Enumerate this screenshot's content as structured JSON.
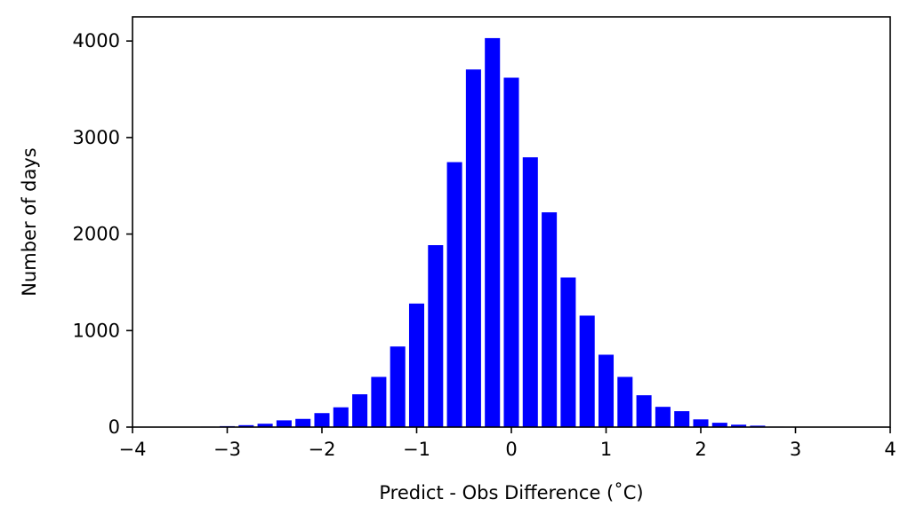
{
  "chart_data": {
    "type": "bar",
    "title": "",
    "xlabel": "Predict - Obs Difference (˚C)",
    "ylabel": "Number of days",
    "xlim": [
      -4,
      4
    ],
    "ylim": [
      0,
      4250
    ],
    "xticks": [
      -4,
      -3,
      -2,
      -1,
      0,
      1,
      2,
      3,
      4
    ],
    "xtick_labels": [
      "−4",
      "−3",
      "−2",
      "−1",
      "0",
      "1",
      "2",
      "3",
      "4"
    ],
    "yticks": [
      0,
      1000,
      2000,
      3000,
      4000
    ],
    "ytick_labels": [
      "0",
      "1000",
      "2000",
      "3000",
      "4000"
    ],
    "bar_width": 0.2,
    "grid": false,
    "bar_color": "#0000ff",
    "x": [
      -3.2,
      -3.0,
      -2.8,
      -2.6,
      -2.4,
      -2.2,
      -2.0,
      -1.8,
      -1.6,
      -1.4,
      -1.2,
      -1.0,
      -0.8,
      -0.6,
      -0.4,
      -0.2,
      0.0,
      0.2,
      0.4,
      0.6,
      0.8,
      1.0,
      1.2,
      1.4,
      1.6,
      1.8,
      2.0,
      2.2,
      2.4,
      2.6,
      2.8,
      3.0,
      3.2,
      3.4,
      3.6,
      3.8
    ],
    "values": [
      5,
      10,
      20,
      35,
      70,
      85,
      145,
      205,
      340,
      520,
      835,
      1280,
      1885,
      2745,
      3705,
      4030,
      3620,
      2795,
      2225,
      1550,
      1155,
      750,
      520,
      330,
      210,
      165,
      80,
      45,
      25,
      15,
      5,
      3,
      2,
      1,
      0,
      0
    ]
  }
}
